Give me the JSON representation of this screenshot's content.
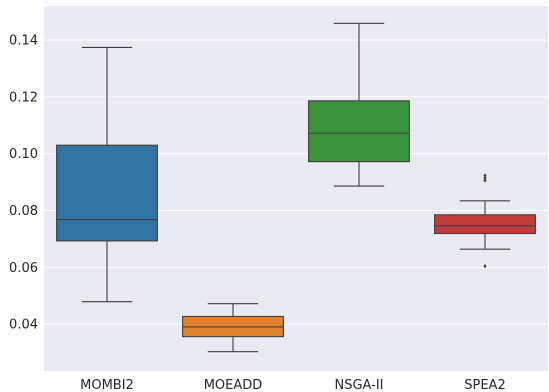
{
  "chart_data": {
    "type": "box",
    "title": "",
    "xlabel": "",
    "ylabel": "",
    "ylim": [
      0.0235,
      0.152
    ],
    "yticks": [
      0.04,
      0.06,
      0.08,
      0.1,
      0.12,
      0.14
    ],
    "ytick_labels": [
      "0.04",
      "0.06",
      "0.08",
      "0.10",
      "0.12",
      "0.14"
    ],
    "grid": "horizontal",
    "background": "#eaeaf2",
    "categories": [
      "MOMBI2",
      "MOEADD",
      "NSGA-II",
      "SPEA2"
    ],
    "boxes": [
      {
        "label": "MOMBI2",
        "color": "#3274a1",
        "whisker_low": 0.0479,
        "q1": 0.0693,
        "median": 0.0768,
        "q3": 0.103,
        "whisker_high": 0.1374,
        "outliers": []
      },
      {
        "label": "MOEADD",
        "color": "#e1812c",
        "whisker_low": 0.0303,
        "q1": 0.0356,
        "median": 0.039,
        "q3": 0.0427,
        "whisker_high": 0.0472,
        "outliers": []
      },
      {
        "label": "NSGA-II",
        "color": "#3a923a",
        "whisker_low": 0.0886,
        "q1": 0.0972,
        "median": 0.1072,
        "q3": 0.1186,
        "whisker_high": 0.1459,
        "outliers": []
      },
      {
        "label": "SPEA2",
        "color": "#c03d3e",
        "whisker_low": 0.0664,
        "q1": 0.0719,
        "median": 0.0746,
        "q3": 0.0785,
        "whisker_high": 0.0834,
        "outliers": [
          0.0604,
          0.0906,
          0.0914,
          0.0923
        ]
      }
    ]
  }
}
